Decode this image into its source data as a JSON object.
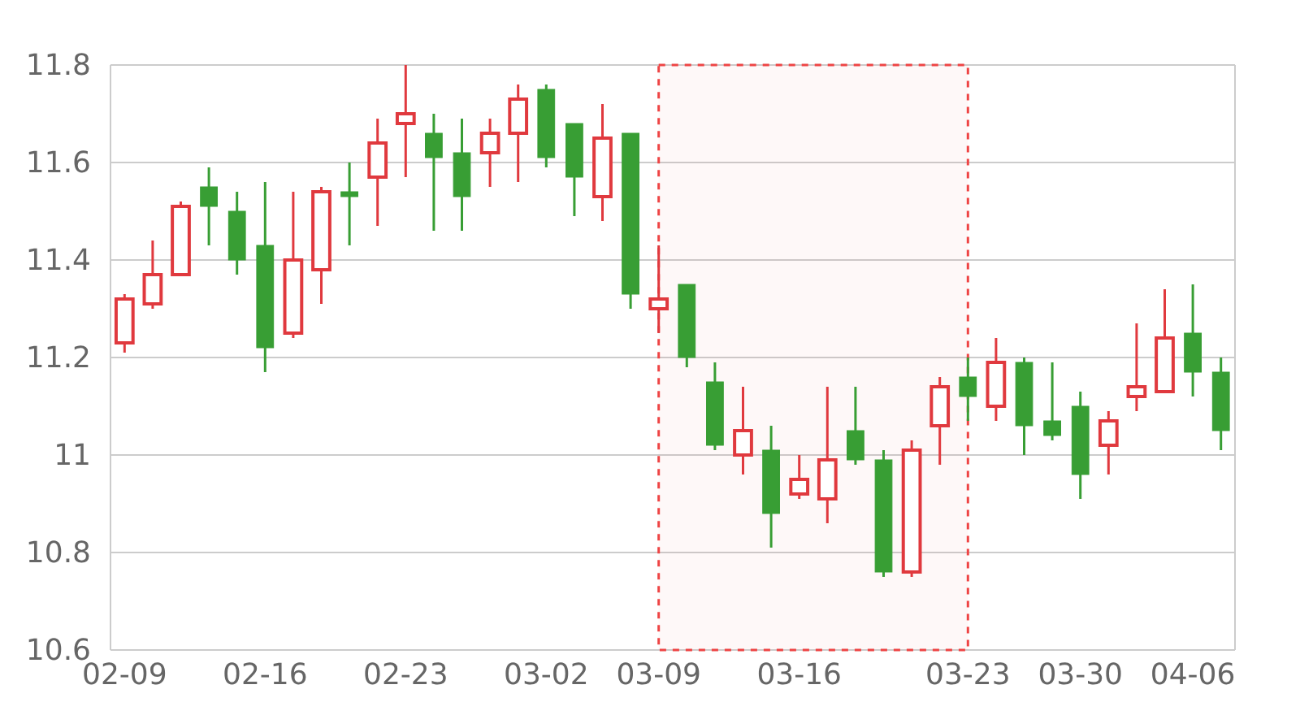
{
  "chart_data": {
    "type": "candlestick",
    "categories": [
      "02-09",
      null,
      null,
      null,
      null,
      "02-16",
      null,
      null,
      null,
      null,
      "02-23",
      null,
      null,
      null,
      null,
      "03-02",
      null,
      null,
      null,
      "03-09",
      null,
      null,
      null,
      null,
      "03-16",
      null,
      null,
      null,
      null,
      null,
      "03-23",
      null,
      null,
      null,
      "03-30",
      null,
      null,
      null,
      "04-06",
      null
    ],
    "ohlc": [
      [
        11.23,
        11.33,
        11.21,
        11.32
      ],
      [
        11.31,
        11.44,
        11.3,
        11.37
      ],
      [
        11.37,
        11.52,
        11.37,
        11.51
      ],
      [
        11.55,
        11.59,
        11.43,
        11.51
      ],
      [
        11.5,
        11.54,
        11.37,
        11.4
      ],
      [
        11.43,
        11.56,
        11.17,
        11.22
      ],
      [
        11.25,
        11.54,
        11.24,
        11.4
      ],
      [
        11.38,
        11.55,
        11.31,
        11.54
      ],
      [
        11.54,
        11.6,
        11.43,
        11.53
      ],
      [
        11.57,
        11.69,
        11.47,
        11.64
      ],
      [
        11.68,
        11.8,
        11.57,
        11.7
      ],
      [
        11.66,
        11.7,
        11.46,
        11.61
      ],
      [
        11.62,
        11.69,
        11.46,
        11.53
      ],
      [
        11.62,
        11.69,
        11.55,
        11.66
      ],
      [
        11.66,
        11.76,
        11.56,
        11.73
      ],
      [
        11.75,
        11.76,
        11.59,
        11.61
      ],
      [
        11.68,
        11.68,
        11.49,
        11.57
      ],
      [
        11.53,
        11.72,
        11.48,
        11.65
      ],
      [
        11.66,
        11.66,
        11.3,
        11.33
      ],
      [
        11.3,
        11.43,
        11.25,
        11.32
      ],
      [
        11.35,
        11.35,
        11.18,
        11.2
      ],
      [
        11.15,
        11.19,
        11.01,
        11.02
      ],
      [
        11.0,
        11.14,
        10.96,
        11.05
      ],
      [
        11.01,
        11.06,
        10.81,
        10.88
      ],
      [
        10.92,
        11.0,
        10.91,
        10.95
      ],
      [
        10.91,
        11.14,
        10.86,
        10.99
      ],
      [
        11.05,
        11.14,
        10.98,
        10.99
      ],
      [
        10.99,
        11.01,
        10.75,
        10.76
      ],
      [
        10.76,
        11.03,
        10.75,
        11.01
      ],
      [
        11.06,
        11.16,
        10.98,
        11.14
      ],
      [
        11.16,
        11.2,
        11.07,
        11.12
      ],
      [
        11.1,
        11.24,
        11.07,
        11.19
      ],
      [
        11.19,
        11.2,
        11.0,
        11.06
      ],
      [
        11.07,
        11.19,
        11.03,
        11.04
      ],
      [
        11.1,
        11.13,
        10.91,
        10.96
      ],
      [
        11.02,
        11.09,
        10.96,
        11.07
      ],
      [
        11.12,
        11.27,
        11.09,
        11.14
      ],
      [
        11.13,
        11.34,
        11.13,
        11.24
      ],
      [
        11.25,
        11.35,
        11.12,
        11.17
      ],
      [
        11.17,
        11.2,
        11.01,
        11.05
      ]
    ],
    "colors": [
      "#e0393e",
      "#e0393e",
      "#e0393e",
      "#389e34",
      "#389e34",
      "#389e34",
      "#e0393e",
      "#e0393e",
      "#389e34",
      "#e0393e",
      "#e0393e",
      "#389e34",
      "#389e34",
      "#e0393e",
      "#e0393e",
      "#389e34",
      "#389e34",
      "#e0393e",
      "#389e34",
      "#e0393e",
      "#389e34",
      "#389e34",
      "#e0393e",
      "#389e34",
      "#e0393e",
      "#e0393e",
      "#389e34",
      "#389e34",
      "#e0393e",
      "#e0393e",
      "#389e34",
      "#e0393e",
      "#389e34",
      "#389e34",
      "#389e34",
      "#e0393e",
      "#e0393e",
      "#e0393e",
      "#389e34",
      "#389e34"
    ],
    "ylim": [
      10.6,
      11.8
    ],
    "yticks": [
      10.6,
      10.8,
      11,
      11.2,
      11.4,
      11.6,
      11.8
    ],
    "grid": "y",
    "bands": [
      {
        "axis": "x",
        "from": "03-09",
        "to": "03-23",
        "color": "#ee4444"
      }
    ]
  }
}
